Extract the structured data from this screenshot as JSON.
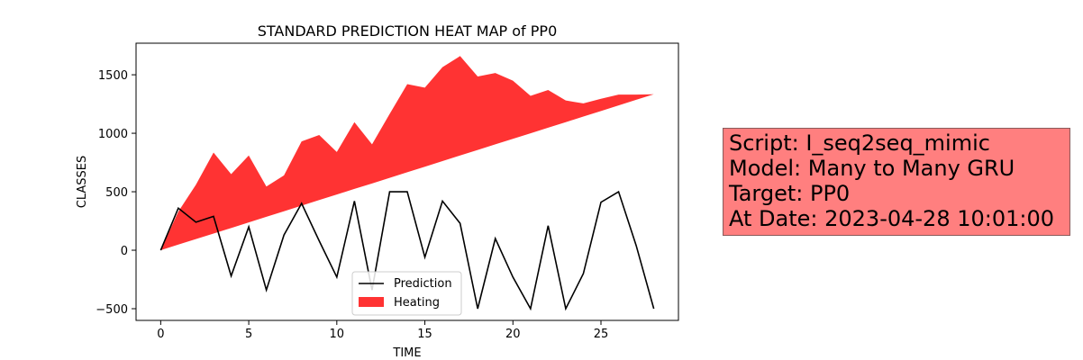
{
  "chart_data": {
    "type": "line",
    "title": "STANDARD PREDICTION HEAT MAP of PP0",
    "xlabel": "TIME",
    "ylabel": "CLASSES",
    "xlim": [
      -1.4,
      29.4
    ],
    "ylim": [
      -600,
      1770
    ],
    "xticks": [
      0,
      5,
      10,
      15,
      20,
      25
    ],
    "yticks": [
      -500,
      0,
      500,
      1000,
      1500
    ],
    "x": [
      0,
      1,
      2,
      3,
      4,
      5,
      6,
      7,
      8,
      9,
      10,
      11,
      12,
      13,
      14,
      15,
      16,
      17,
      18,
      19,
      20,
      21,
      22,
      23,
      24,
      25,
      26,
      27,
      28
    ],
    "series": [
      {
        "name": "Prediction",
        "kind": "line",
        "color": "#000000",
        "values": [
          0,
          360,
          240,
          290,
          -220,
          200,
          -340,
          130,
          400,
          80,
          -230,
          420,
          -340,
          500,
          500,
          -60,
          420,
          230,
          -500,
          100,
          -230,
          -500,
          210,
          -500,
          -200,
          410,
          500,
          40,
          -500
        ]
      },
      {
        "name": "Heating",
        "kind": "fill_between",
        "color": "#ff3333",
        "lower": [
          0,
          48,
          95,
          143,
          190,
          238,
          286,
          333,
          381,
          429,
          476,
          524,
          571,
          619,
          667,
          714,
          762,
          810,
          857,
          905,
          952,
          1000,
          1048,
          1095,
          1143,
          1190,
          1238,
          1286,
          1333
        ],
        "upper": [
          0,
          330,
          560,
          835,
          650,
          810,
          545,
          640,
          930,
          985,
          840,
          1095,
          905,
          1165,
          1420,
          1390,
          1565,
          1660,
          1485,
          1515,
          1450,
          1320,
          1370,
          1280,
          1255,
          1295,
          1330,
          1330,
          1333
        ]
      }
    ],
    "legend": {
      "position": "lower-center"
    },
    "grid": false
  },
  "info_box": {
    "background": "#ff7f7f",
    "lines": [
      "Script: I_seq2seq_mimic",
      "Model: Many to Many GRU",
      "Target: PP0",
      "At Date: 2023-04-28 10:01:00"
    ]
  }
}
